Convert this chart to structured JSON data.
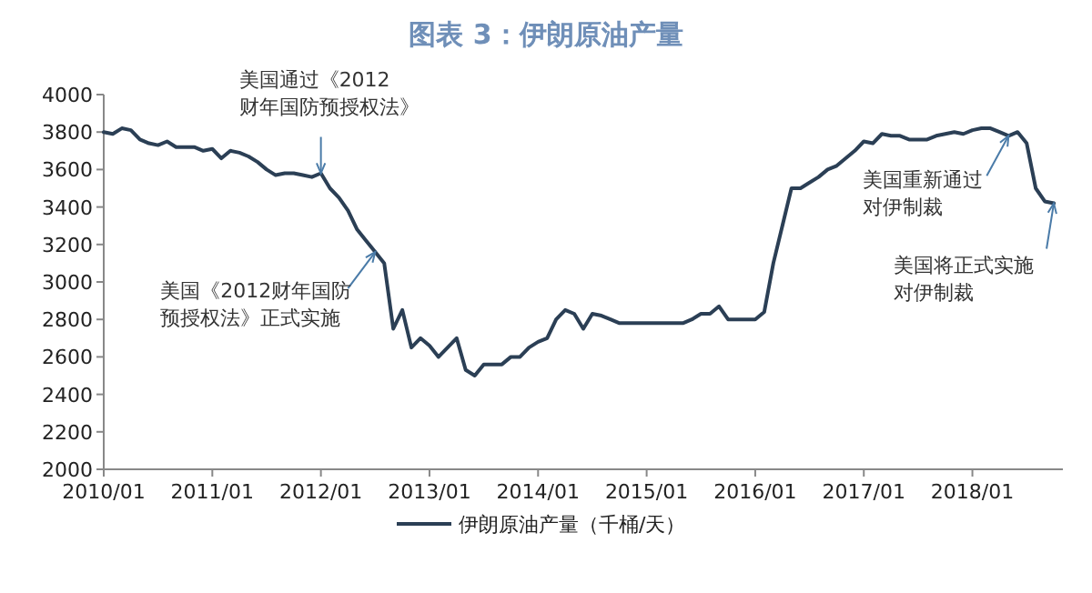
{
  "chart_data": {
    "type": "line",
    "title": "图表 3：伊朗原油产量",
    "x": [
      "2010-01",
      "2010-02",
      "2010-03",
      "2010-04",
      "2010-05",
      "2010-06",
      "2010-07",
      "2010-08",
      "2010-09",
      "2010-10",
      "2010-11",
      "2010-12",
      "2011-01",
      "2011-02",
      "2011-03",
      "2011-04",
      "2011-05",
      "2011-06",
      "2011-07",
      "2011-08",
      "2011-09",
      "2011-10",
      "2011-11",
      "2011-12",
      "2012-01",
      "2012-02",
      "2012-03",
      "2012-04",
      "2012-05",
      "2012-06",
      "2012-07",
      "2012-08",
      "2012-09",
      "2012-10",
      "2012-11",
      "2012-12",
      "2013-01",
      "2013-02",
      "2013-03",
      "2013-04",
      "2013-05",
      "2013-06",
      "2013-07",
      "2013-08",
      "2013-09",
      "2013-10",
      "2013-11",
      "2013-12",
      "2014-01",
      "2014-02",
      "2014-03",
      "2014-04",
      "2014-05",
      "2014-06",
      "2014-07",
      "2014-08",
      "2014-09",
      "2014-10",
      "2014-11",
      "2014-12",
      "2015-01",
      "2015-02",
      "2015-03",
      "2015-04",
      "2015-05",
      "2015-06",
      "2015-07",
      "2015-08",
      "2015-09",
      "2015-10",
      "2015-11",
      "2015-12",
      "2016-01",
      "2016-02",
      "2016-03",
      "2016-04",
      "2016-05",
      "2016-06",
      "2016-07",
      "2016-08",
      "2016-09",
      "2016-10",
      "2016-11",
      "2016-12",
      "2017-01",
      "2017-02",
      "2017-03",
      "2017-04",
      "2017-05",
      "2017-06",
      "2017-07",
      "2017-08",
      "2017-09",
      "2017-10",
      "2017-11",
      "2017-12",
      "2018-01",
      "2018-02",
      "2018-03",
      "2018-04",
      "2018-05",
      "2018-06",
      "2018-07",
      "2018-08",
      "2018-09",
      "2018-10"
    ],
    "series": [
      {
        "name": "伊朗原油产量（千桶/天）",
        "color": "#2b3f55",
        "values": [
          3800,
          3790,
          3820,
          3810,
          3760,
          3740,
          3730,
          3750,
          3720,
          3720,
          3720,
          3700,
          3710,
          3660,
          3700,
          3690,
          3670,
          3640,
          3600,
          3570,
          3580,
          3580,
          3570,
          3560,
          3580,
          3500,
          3450,
          3380,
          3280,
          3220,
          3160,
          3100,
          2750,
          2850,
          2650,
          2700,
          2660,
          2600,
          2650,
          2700,
          2530,
          2500,
          2560,
          2560,
          2560,
          2600,
          2600,
          2650,
          2680,
          2700,
          2800,
          2850,
          2830,
          2750,
          2830,
          2820,
          2800,
          2780,
          2780,
          2780,
          2780,
          2780,
          2780,
          2780,
          2780,
          2800,
          2830,
          2830,
          2870,
          2800,
          2800,
          2800,
          2800,
          2840,
          3100,
          3300,
          3500,
          3500,
          3530,
          3560,
          3600,
          3620,
          3660,
          3700,
          3750,
          3740,
          3790,
          3780,
          3780,
          3760,
          3760,
          3760,
          3780,
          3790,
          3800,
          3790,
          3810,
          3820,
          3820,
          3800,
          3780,
          3800,
          3740,
          3500,
          3430,
          3420
        ]
      }
    ],
    "xlim": [
      "2010-01",
      "2018-11"
    ],
    "xticks": [
      {
        "value": "2010-01",
        "label": "2010/01"
      },
      {
        "value": "2011-01",
        "label": "2011/01"
      },
      {
        "value": "2012-01",
        "label": "2012/01"
      },
      {
        "value": "2013-01",
        "label": "2013/01"
      },
      {
        "value": "2014-01",
        "label": "2014/01"
      },
      {
        "value": "2015-01",
        "label": "2015/01"
      },
      {
        "value": "2016-01",
        "label": "2016/01"
      },
      {
        "value": "2017-01",
        "label": "2017/01"
      },
      {
        "value": "2018-01",
        "label": "2018/01"
      }
    ],
    "ylim": [
      2000,
      4000
    ],
    "yticks": [
      2000,
      2200,
      2400,
      2600,
      2800,
      3000,
      3200,
      3400,
      3600,
      3800,
      4000
    ],
    "annotations": [
      {
        "text": "美国通过《2012财年国防预授权法》",
        "x": "2012-01",
        "y": 3580
      },
      {
        "text": "美国《2012财年国防预授权法》正式实施",
        "x": "2012-07",
        "y": 3160
      },
      {
        "text": "美国重新通过对伊制裁",
        "x": "2018-05",
        "y": 3780
      },
      {
        "text": "美国将正式实施对伊制裁",
        "x": "2018-10",
        "y": 3420
      }
    ],
    "legend": "bottom",
    "grid": false,
    "marker": "none",
    "line_style": "solid"
  }
}
